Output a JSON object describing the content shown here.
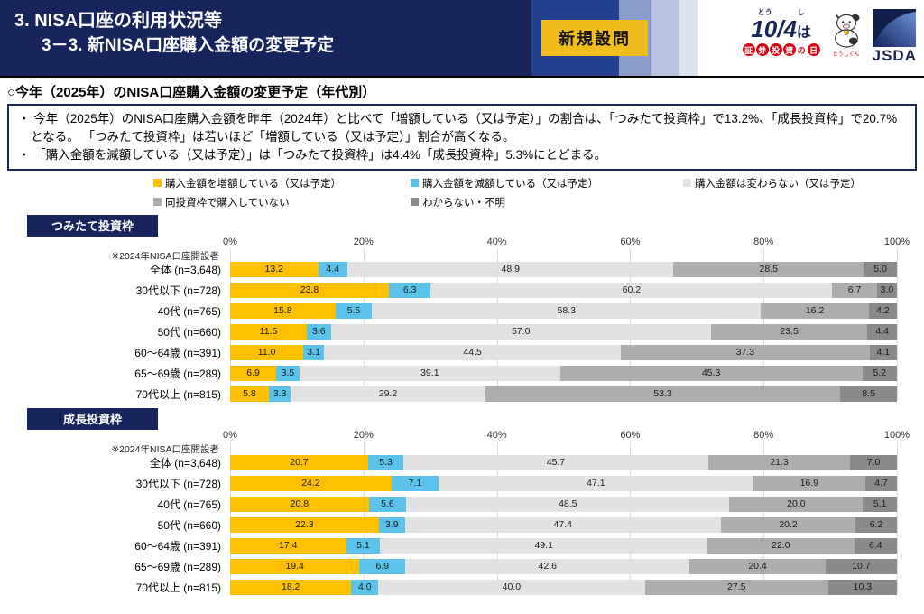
{
  "header": {
    "title_line1": "3. NISA口座の利用状況等",
    "title_line2": "3－3. 新NISA口座購入金額の変更予定",
    "badge": "新規設問",
    "day_logo": {
      "furigana_left": "とう",
      "furigana_right": "し",
      "date_main": "10/4",
      "date_suffix": "は",
      "label": "証券投資の日",
      "mascot_caption": "とうしくん"
    },
    "jsda_label": "JSDA"
  },
  "subtitle": "○今年（2025年）のNISA口座購入金額の変更予定（年代別）",
  "summary": {
    "bullets": [
      "・ 今年（2025年）のNISA口座購入金額を昨年（2024年）と比べて「増額している（又は予定）」の割合は、「つみたて投資枠」で13.2%、「成長投資枠」で20.7%となる。 「つみたて投資枠」は若いほど「増額している（又は予定）」割合が高くなる。",
      "・ 「購入金額を減額している（又は予定）」は「つみたて投資枠」は4.4%「成長投資枠」5.3%にとどまる。"
    ]
  },
  "legend": [
    {
      "label": "購入金額を増額している（又は予定）",
      "color": "#FFC000"
    },
    {
      "label": "購入金額を減額している（又は予定）",
      "color": "#5BC2EA"
    },
    {
      "label": "購入金額は変わらない（又は予定）",
      "color": "#E2E2E2"
    },
    {
      "label": "同投資枠で購入していない",
      "color": "#ADADAD"
    },
    {
      "label": "わからない・不明",
      "color": "#8A8A8A"
    }
  ],
  "chart_data": [
    {
      "type": "bar",
      "stacked": true,
      "title": "つみたて投資枠",
      "note": "※2024年NISA口座開設者",
      "axis_ticks": [
        "0%",
        "20%",
        "40%",
        "60%",
        "80%",
        "100%"
      ],
      "xlim": [
        0,
        100
      ],
      "grid": true,
      "legend_position": "top",
      "categories": [
        "全体 (n=3,648)",
        "30代以下 (n=728)",
        "40代 (n=765)",
        "50代 (n=660)",
        "60〜64歳 (n=391)",
        "65〜69歳 (n=289)",
        "70代以上 (n=815)"
      ],
      "series": [
        {
          "name": "購入金額を増額している（又は予定）",
          "color": "#FFC000",
          "values": [
            13.2,
            23.8,
            15.8,
            11.5,
            11.0,
            6.9,
            5.8
          ]
        },
        {
          "name": "購入金額を減額している（又は予定）",
          "color": "#5BC2EA",
          "values": [
            4.4,
            6.3,
            5.5,
            3.6,
            3.1,
            3.5,
            3.3
          ]
        },
        {
          "name": "購入金額は変わらない（又は予定）",
          "color": "#E2E2E2",
          "values": [
            48.9,
            60.2,
            58.3,
            57.0,
            44.5,
            39.1,
            29.2
          ]
        },
        {
          "name": "同投資枠で購入していない",
          "color": "#ADADAD",
          "values": [
            28.5,
            6.7,
            16.2,
            23.5,
            37.3,
            45.3,
            53.3
          ]
        },
        {
          "name": "わからない・不明",
          "color": "#8A8A8A",
          "values": [
            5.0,
            3.0,
            4.2,
            4.4,
            4.1,
            5.2,
            8.5
          ]
        }
      ]
    },
    {
      "type": "bar",
      "stacked": true,
      "title": "成長投資枠",
      "note": "※2024年NISA口座開設者",
      "axis_ticks": [
        "0%",
        "20%",
        "40%",
        "60%",
        "80%",
        "100%"
      ],
      "xlim": [
        0,
        100
      ],
      "grid": true,
      "legend_position": "top",
      "categories": [
        "全体 (n=3,648)",
        "30代以下 (n=728)",
        "40代 (n=765)",
        "50代 (n=660)",
        "60〜64歳 (n=391)",
        "65〜69歳 (n=289)",
        "70代以上 (n=815)"
      ],
      "series": [
        {
          "name": "購入金額を増額している（又は予定）",
          "color": "#FFC000",
          "values": [
            20.7,
            24.2,
            20.8,
            22.3,
            17.4,
            19.4,
            18.2
          ]
        },
        {
          "name": "購入金額を減額している（又は予定）",
          "color": "#5BC2EA",
          "values": [
            5.3,
            7.1,
            5.6,
            3.9,
            5.1,
            6.9,
            4.0
          ]
        },
        {
          "name": "購入金額は変わらない（又は予定）",
          "color": "#E2E2E2",
          "values": [
            45.7,
            47.1,
            48.5,
            47.4,
            49.1,
            42.6,
            40.0
          ]
        },
        {
          "name": "同投資枠で購入していない",
          "color": "#ADADAD",
          "values": [
            21.3,
            16.9,
            20.0,
            20.2,
            22.0,
            20.4,
            27.5
          ]
        },
        {
          "name": "わからない・不明",
          "color": "#8A8A8A",
          "values": [
            7.0,
            4.7,
            5.1,
            6.2,
            6.4,
            10.7,
            10.3
          ]
        }
      ]
    }
  ]
}
